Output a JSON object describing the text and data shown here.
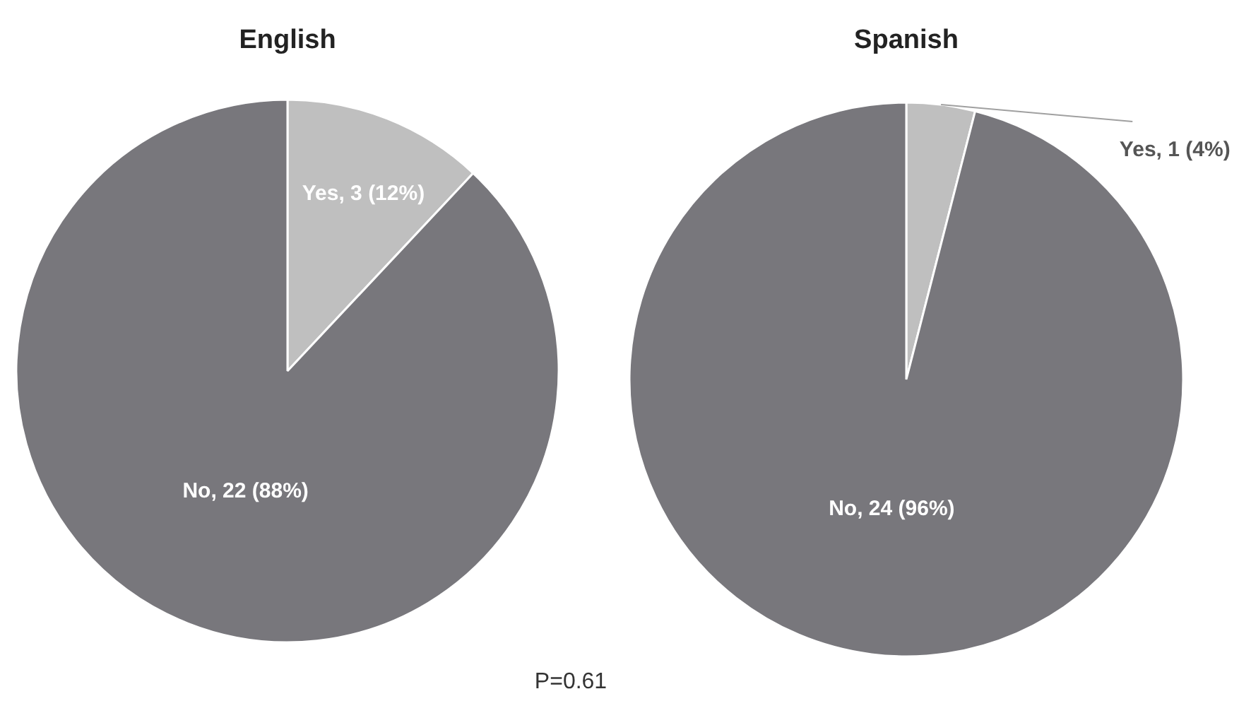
{
  "chart_data": [
    {
      "type": "pie",
      "title": "English",
      "categories": [
        "Yes",
        "No"
      ],
      "values": [
        3,
        22
      ],
      "value_labels": [
        "3 (12%)",
        "22 (88%)"
      ],
      "colors": [
        "#bfbfbf",
        "#78777c"
      ],
      "annotations": [
        "P=0.61"
      ]
    },
    {
      "type": "pie",
      "title": "Spanish",
      "categories": [
        "Yes",
        "No"
      ],
      "values": [
        1,
        24
      ],
      "value_labels": [
        "1 (4%)",
        "24 (96%)"
      ],
      "colors": [
        "#bfbfbf",
        "#78777c"
      ]
    }
  ]
}
